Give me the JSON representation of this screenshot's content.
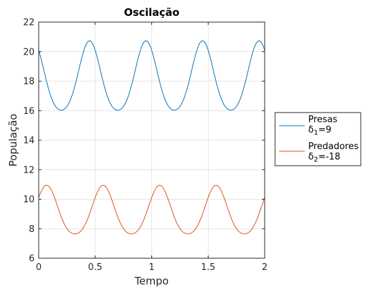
{
  "chart_data": {
    "type": "line",
    "title": "Oscilação",
    "xlabel": "Tempo",
    "ylabel": "População",
    "xlim": [
      0,
      2
    ],
    "ylim": [
      6,
      22
    ],
    "xticks": [
      0,
      0.5,
      1,
      1.5,
      2
    ],
    "yticks": [
      6,
      8,
      10,
      12,
      14,
      16,
      18,
      20,
      22
    ],
    "grid": true,
    "legend_position": "outside-right",
    "series": [
      {
        "name": "Presas",
        "delta_symbol": "δ",
        "delta_sub": "1",
        "delta_value": "=9",
        "color": "#0072BD",
        "mean": 18.1,
        "amplitude": 2.35,
        "period": 0.5,
        "phase_peak": 0.45
      },
      {
        "name": "Predadores",
        "delta_symbol": "δ",
        "delta_sub": "2",
        "delta_value": "=-18",
        "color": "#D95319",
        "mean": 9.1,
        "amplitude": 1.65,
        "period": 0.5,
        "phase_peak": 0.07
      }
    ]
  }
}
